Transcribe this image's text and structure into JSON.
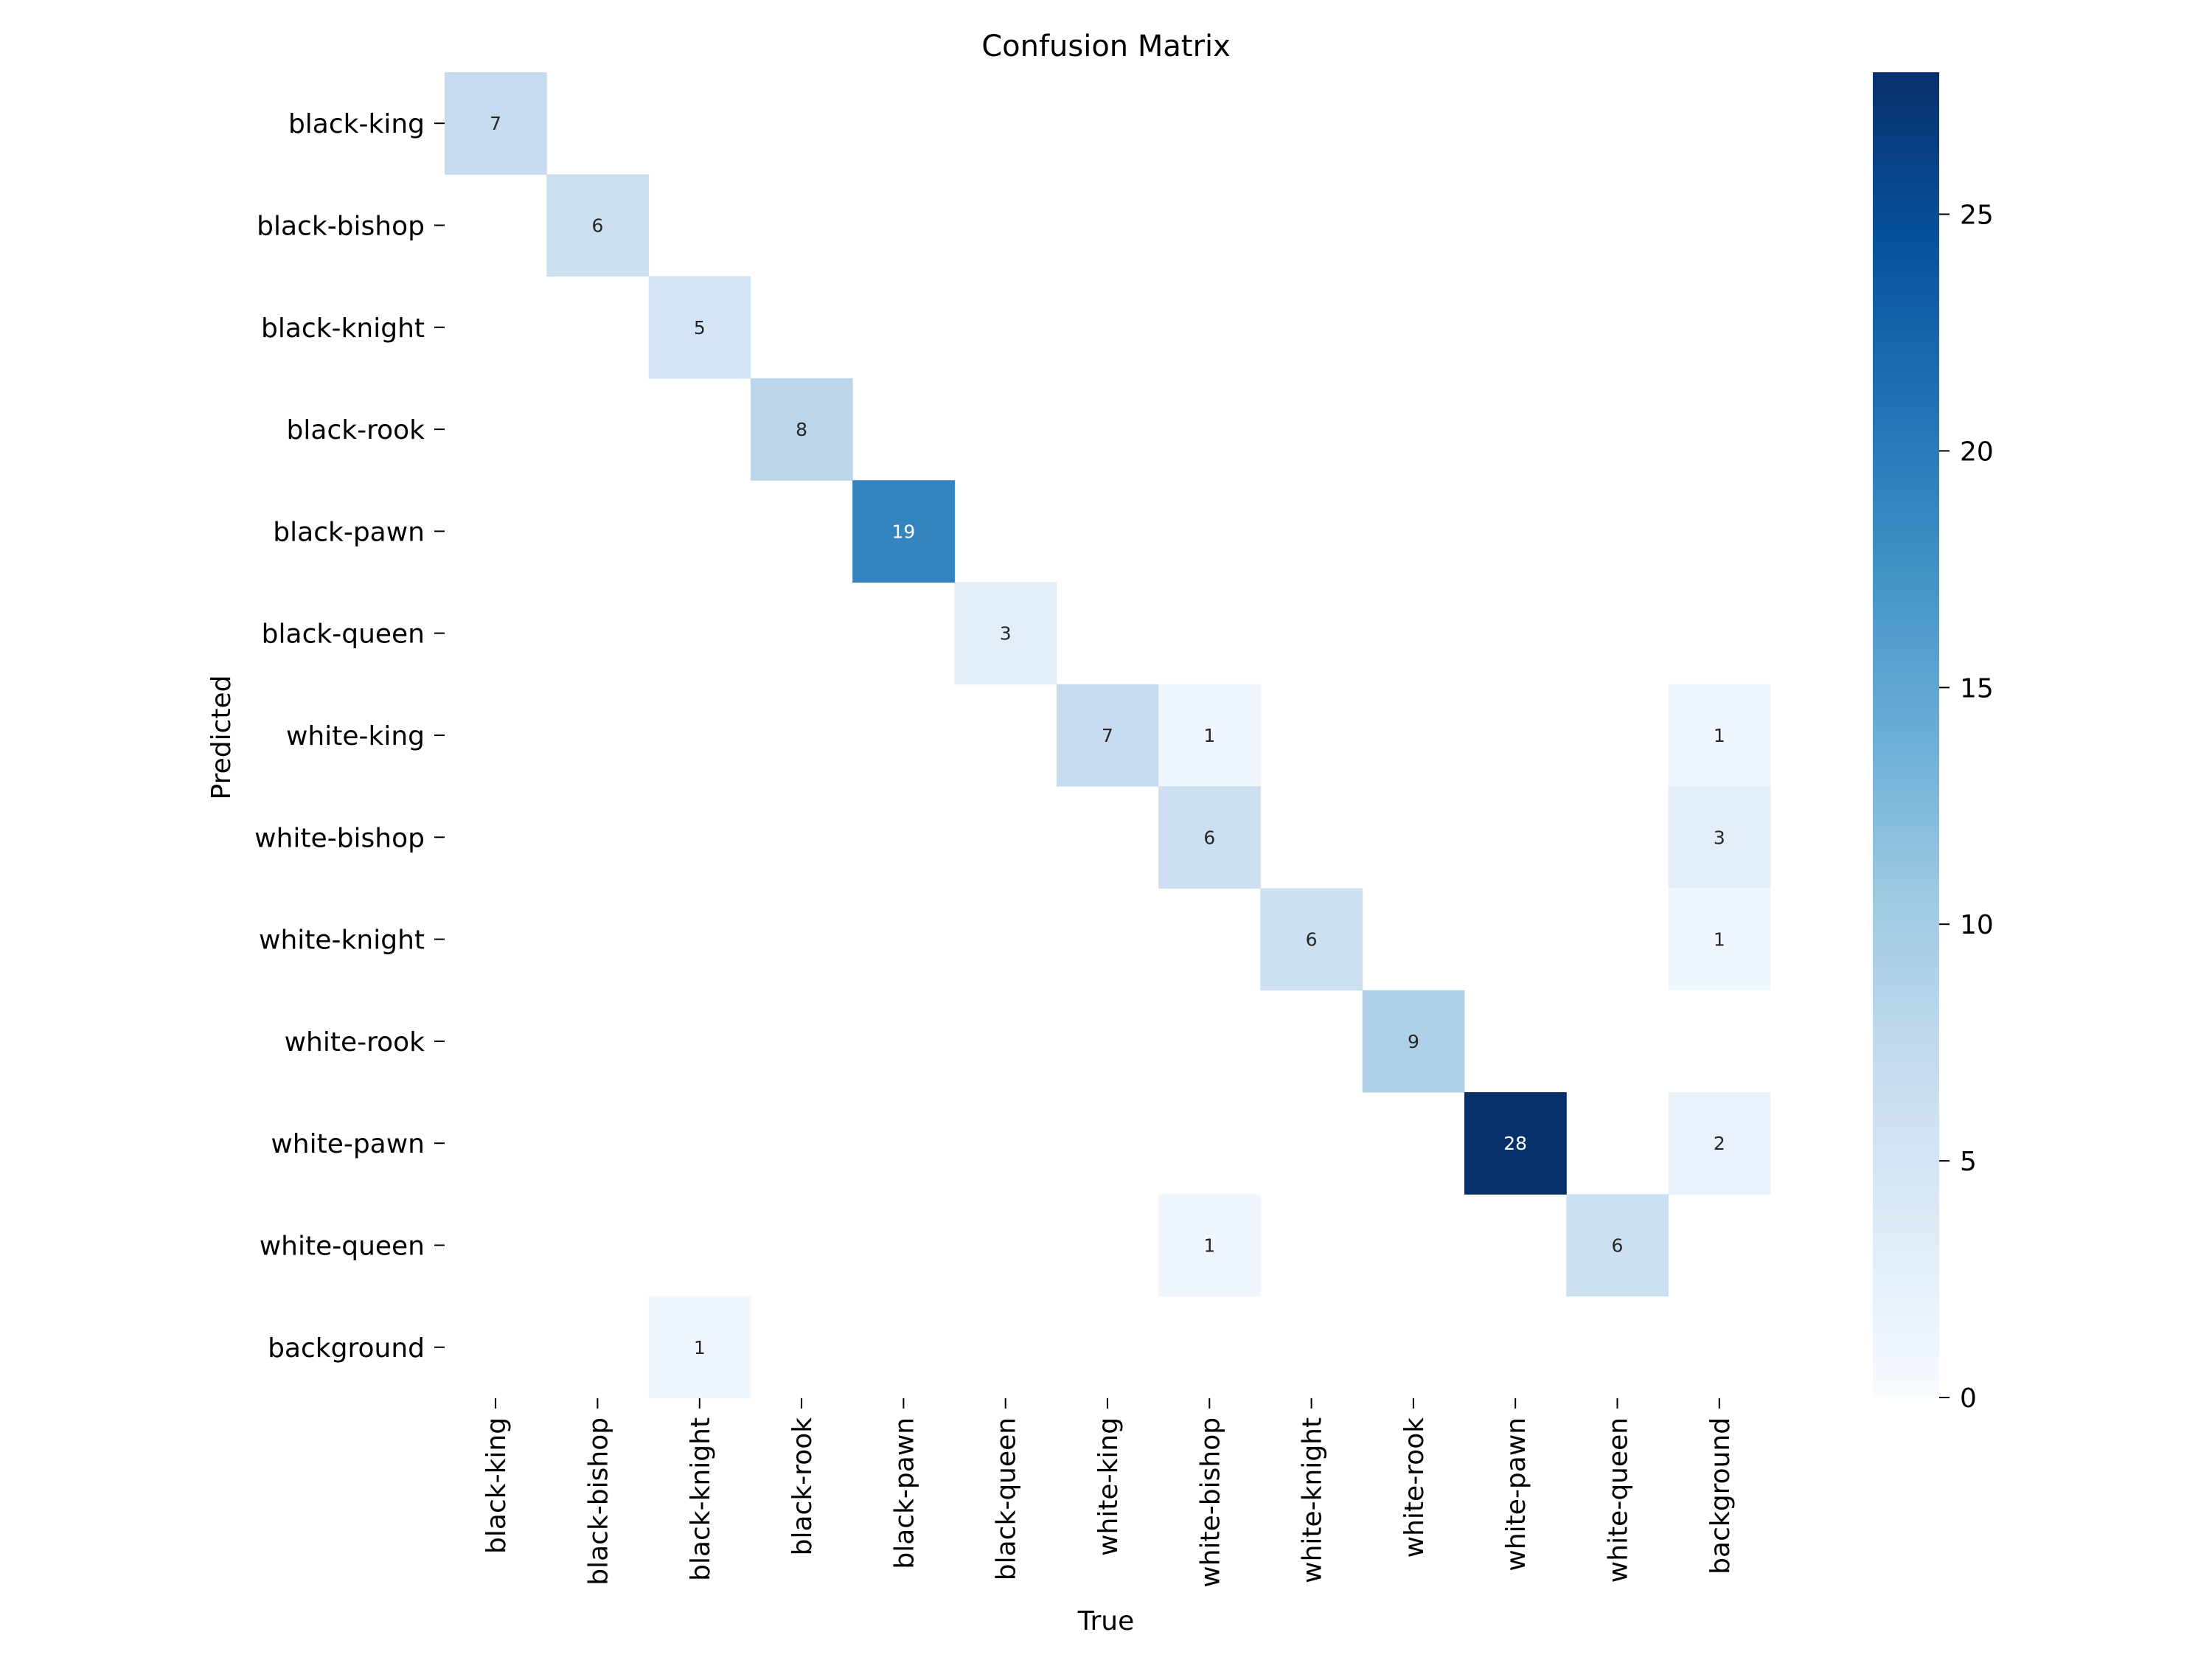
{
  "chart_data": {
    "type": "heatmap",
    "title": "Confusion Matrix",
    "xlabel": "True",
    "ylabel": "Predicted",
    "x_categories": [
      "black-king",
      "black-bishop",
      "black-knight",
      "black-rook",
      "black-pawn",
      "black-queen",
      "white-king",
      "white-bishop",
      "white-knight",
      "white-rook",
      "white-pawn",
      "white-queen",
      "background"
    ],
    "y_categories": [
      "black-king",
      "black-bishop",
      "black-knight",
      "black-rook",
      "black-pawn",
      "black-queen",
      "white-king",
      "white-bishop",
      "white-knight",
      "white-rook",
      "white-pawn",
      "white-queen",
      "background"
    ],
    "values": [
      [
        7,
        0,
        0,
        0,
        0,
        0,
        0,
        0,
        0,
        0,
        0,
        0,
        0
      ],
      [
        0,
        6,
        0,
        0,
        0,
        0,
        0,
        0,
        0,
        0,
        0,
        0,
        0
      ],
      [
        0,
        0,
        5,
        0,
        0,
        0,
        0,
        0,
        0,
        0,
        0,
        0,
        0
      ],
      [
        0,
        0,
        0,
        8,
        0,
        0,
        0,
        0,
        0,
        0,
        0,
        0,
        0
      ],
      [
        0,
        0,
        0,
        0,
        19,
        0,
        0,
        0,
        0,
        0,
        0,
        0,
        0
      ],
      [
        0,
        0,
        0,
        0,
        0,
        3,
        0,
        0,
        0,
        0,
        0,
        0,
        0
      ],
      [
        0,
        0,
        0,
        0,
        0,
        0,
        7,
        1,
        0,
        0,
        0,
        0,
        1
      ],
      [
        0,
        0,
        0,
        0,
        0,
        0,
        0,
        6,
        0,
        0,
        0,
        0,
        3
      ],
      [
        0,
        0,
        0,
        0,
        0,
        0,
        0,
        0,
        6,
        0,
        0,
        0,
        1
      ],
      [
        0,
        0,
        0,
        0,
        0,
        0,
        0,
        0,
        0,
        9,
        0,
        0,
        0
      ],
      [
        0,
        0,
        0,
        0,
        0,
        0,
        0,
        0,
        0,
        0,
        28,
        0,
        2
      ],
      [
        0,
        0,
        0,
        0,
        0,
        0,
        0,
        1,
        0,
        0,
        0,
        6,
        0
      ],
      [
        0,
        0,
        1,
        0,
        0,
        0,
        0,
        0,
        0,
        0,
        0,
        0,
        0
      ]
    ],
    "zero_cells_shown": false,
    "colormap": "Blues",
    "colors": {
      "low": "#f7fbff",
      "high": "#08306b",
      "stops": [
        "#f7fbff",
        "#deebf7",
        "#c6dbef",
        "#9ecae1",
        "#6baed6",
        "#4292c6",
        "#2171b5",
        "#08519c",
        "#08306b"
      ]
    },
    "colorbar": {
      "range": [
        0,
        28
      ],
      "ticks": [
        0,
        5,
        10,
        15,
        20,
        25
      ]
    },
    "grid": false,
    "legend": "none"
  }
}
